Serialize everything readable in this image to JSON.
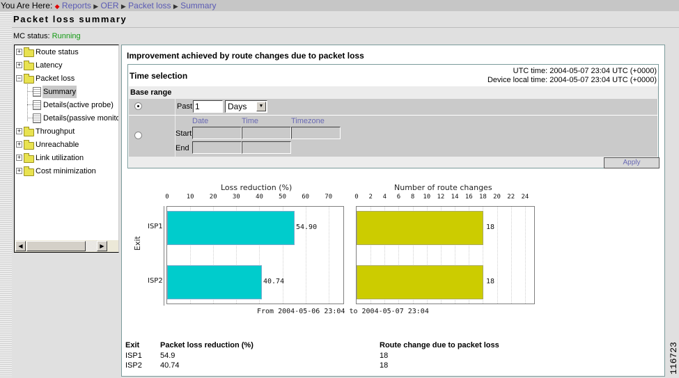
{
  "breadcrumb": {
    "prefix": "You Are Here:",
    "items": [
      "Reports",
      "OER",
      "Packet loss",
      "Summary"
    ]
  },
  "page_title": "Packet loss summary",
  "mc_status": {
    "label": "MC status:",
    "value": "Running",
    "color": "#129a12"
  },
  "tree": {
    "items": [
      {
        "label": "Route status",
        "type": "folder",
        "expanded": false
      },
      {
        "label": "Latency",
        "type": "folder",
        "expanded": false
      },
      {
        "label": "Packet loss",
        "type": "folder",
        "expanded": true
      },
      {
        "label": "Summary",
        "type": "page",
        "selected": true
      },
      {
        "label": "Details(active probe)",
        "type": "page"
      },
      {
        "label": "Details(passive monito",
        "type": "page"
      },
      {
        "label": "Throughput",
        "type": "folder",
        "expanded": false
      },
      {
        "label": "Unreachable",
        "type": "folder",
        "expanded": false
      },
      {
        "label": "Link utilization",
        "type": "folder",
        "expanded": false
      },
      {
        "label": "Cost minimization",
        "type": "folder",
        "expanded": false
      }
    ]
  },
  "main": {
    "heading": "Improvement achieved by route changes due to packet loss",
    "time_selection": {
      "label": "Time selection",
      "utc_time": "UTC time: 2004-05-07 23:04 UTC (+0000)",
      "device_time": "Device local time: 2004-05-07 23:04 UTC (+0000)",
      "base_range": "Base range",
      "past_label": "Past",
      "past_value": "1",
      "unit_selected": "Days",
      "col_date": "Date",
      "col_time": "Time",
      "col_timezone": "Timezone",
      "start_label": "Start",
      "end_label": "End",
      "apply_label": "Apply"
    },
    "footer_range": "From 2004-05-06 23:04 to 2004-05-07 23:04",
    "y_axis_label": "Exit",
    "table": {
      "headers": [
        "Exit",
        "Packet loss reduction (%)",
        "Route change due to packet loss"
      ],
      "rows": [
        [
          "ISP1",
          "54.9",
          "18"
        ],
        [
          "ISP2",
          "40.74",
          "18"
        ]
      ]
    }
  },
  "figure_number": "116723",
  "chart_data": [
    {
      "type": "bar",
      "orientation": "horizontal",
      "title": "Loss reduction (%)",
      "categories": [
        "ISP1",
        "ISP2"
      ],
      "values": [
        54.9,
        40.74
      ],
      "value_labels": [
        "54.90",
        "40.74"
      ],
      "ticks": [
        "0",
        "10",
        "20",
        "30",
        "40",
        "50",
        "60",
        "70"
      ],
      "xlim": [
        0,
        77
      ],
      "ylabel": "Exit",
      "color": "#00cccc",
      "grid": true
    },
    {
      "type": "bar",
      "orientation": "horizontal",
      "title": "Number of route changes",
      "categories": [
        "ISP1",
        "ISP2"
      ],
      "values": [
        18,
        18
      ],
      "value_labels": [
        "18",
        "18"
      ],
      "ticks": [
        "0",
        "2",
        "4",
        "6",
        "8",
        "10",
        "12",
        "14",
        "16",
        "18",
        "20",
        "22",
        "24"
      ],
      "xlim": [
        0,
        25.5
      ],
      "color": "#cccc00",
      "grid": true
    }
  ]
}
